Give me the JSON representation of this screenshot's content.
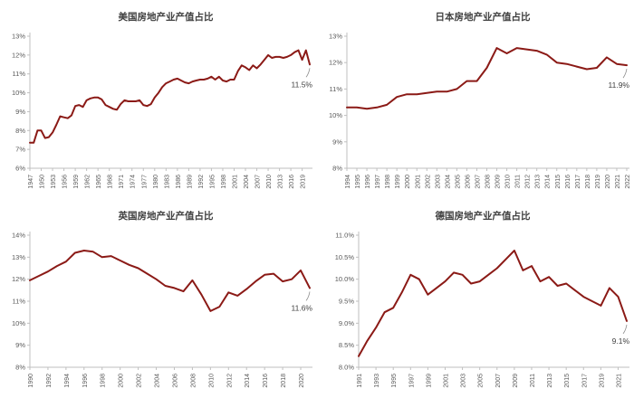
{
  "style": {
    "accent_color": "#8B1A16",
    "axis_color": "#BFBFBF",
    "tick_label_color": "#595959",
    "title_color": "#404040",
    "annotation_color": "#404040",
    "leader_line_color": "#8C8C8C",
    "background": "#FFFFFF"
  },
  "chart_data": [
    {
      "type": "line",
      "title": "美国房地产业产值占比",
      "annotation": "11.5%",
      "x_start": 1947,
      "x_step": 1,
      "values": [
        7.35,
        7.35,
        8.0,
        8.0,
        7.6,
        7.65,
        7.9,
        8.3,
        8.75,
        8.7,
        8.65,
        8.8,
        9.3,
        9.35,
        9.25,
        9.6,
        9.7,
        9.75,
        9.75,
        9.65,
        9.35,
        9.25,
        9.15,
        9.1,
        9.4,
        9.6,
        9.55,
        9.55,
        9.55,
        9.6,
        9.35,
        9.3,
        9.4,
        9.75,
        10.0,
        10.3,
        10.5,
        10.6,
        10.7,
        10.75,
        10.65,
        10.55,
        10.5,
        10.6,
        10.65,
        10.7,
        10.7,
        10.75,
        10.85,
        10.7,
        10.85,
        10.65,
        10.6,
        10.7,
        10.7,
        11.15,
        11.45,
        11.35,
        11.2,
        11.45,
        11.3,
        11.5,
        11.75,
        12.0,
        11.85,
        11.9,
        11.9,
        11.85,
        11.9,
        12.0,
        12.15,
        12.25,
        11.75,
        12.25,
        11.5
      ],
      "x_ticks": [
        "1947",
        "1950",
        "1953",
        "1956",
        "1959",
        "1962",
        "1965",
        "1968",
        "1971",
        "1974",
        "1977",
        "1980",
        "1983",
        "1986",
        "1989",
        "1992",
        "1995",
        "1998",
        "2001",
        "2004",
        "2007",
        "2010",
        "2013",
        "2016",
        "2019"
      ],
      "ylim": [
        6,
        13
      ],
      "y_tick_values": [
        13,
        12,
        11,
        10,
        9,
        8,
        7,
        6
      ],
      "y_tick_labels": [
        "13%",
        "12%",
        "11%",
        "10%",
        "9%",
        "8%",
        "7%",
        "6%"
      ],
      "grid": "off",
      "legend": "none"
    },
    {
      "type": "line",
      "title": "日本房地产业产值占比",
      "annotation": "11.9%",
      "x_start": 1994,
      "x_step": 1,
      "values": [
        10.3,
        10.3,
        10.25,
        10.3,
        10.4,
        10.7,
        10.8,
        10.8,
        10.85,
        10.9,
        10.9,
        11.0,
        11.3,
        11.3,
        11.8,
        12.55,
        12.35,
        12.55,
        12.5,
        12.45,
        12.3,
        12.0,
        11.95,
        11.85,
        11.75,
        11.8,
        12.2,
        11.95,
        11.9
      ],
      "x_ticks": [
        "1994",
        "1995",
        "1996",
        "1997",
        "1998",
        "1999",
        "2000",
        "2001",
        "2002",
        "2003",
        "2004",
        "2005",
        "2006",
        "2007",
        "2008",
        "2009",
        "2010",
        "2011",
        "2012",
        "2013",
        "2014",
        "2015",
        "2016",
        "2017",
        "2018",
        "2019",
        "2020",
        "2021",
        "2022"
      ],
      "ylim": [
        8,
        13
      ],
      "y_tick_values": [
        13,
        12,
        11,
        10,
        9,
        8
      ],
      "y_tick_labels": [
        "13%",
        "12%",
        "11%",
        "10%",
        "9%",
        "8%"
      ],
      "grid": "off",
      "legend": "none"
    },
    {
      "type": "line",
      "title": "英国房地产业产值占比",
      "annotation": "11.6%",
      "x_start": 1990,
      "x_step": 1,
      "values": [
        11.95,
        12.15,
        12.35,
        12.6,
        12.8,
        13.2,
        13.3,
        13.25,
        13.0,
        13.05,
        12.85,
        12.65,
        12.5,
        12.25,
        12.0,
        11.7,
        11.6,
        11.45,
        11.95,
        11.3,
        10.55,
        10.75,
        11.4,
        11.25,
        11.55,
        11.9,
        12.2,
        12.25,
        11.9,
        12.0,
        12.4,
        11.6
      ],
      "x_ticks": [
        "1990",
        "1992",
        "1994",
        "1996",
        "1998",
        "2000",
        "2002",
        "2004",
        "2006",
        "2008",
        "2010",
        "2012",
        "2014",
        "2016",
        "2018",
        "2020"
      ],
      "ylim": [
        8,
        14
      ],
      "y_tick_values": [
        14,
        13,
        12,
        11,
        10,
        9,
        8
      ],
      "y_tick_labels": [
        "14%",
        "13%",
        "12%",
        "11%",
        "10%",
        "9%",
        "8%"
      ],
      "grid": "off",
      "legend": "none"
    },
    {
      "type": "line",
      "title": "德国房地产业产值占比",
      "annotation": "9.1%",
      "x_start": 1991,
      "x_step": 1,
      "values": [
        8.25,
        8.6,
        8.9,
        9.25,
        9.35,
        9.7,
        10.1,
        10.0,
        9.65,
        9.8,
        9.95,
        10.15,
        10.1,
        9.9,
        9.95,
        10.1,
        10.25,
        10.45,
        10.65,
        10.2,
        10.3,
        9.95,
        10.05,
        9.85,
        9.9,
        9.75,
        9.6,
        9.5,
        9.4,
        9.8,
        9.6,
        9.05
      ],
      "x_ticks": [
        "1991",
        "1993",
        "1995",
        "1997",
        "1999",
        "2001",
        "2003",
        "2005",
        "2007",
        "2009",
        "2011",
        "2013",
        "2015",
        "2017",
        "2019",
        "2021"
      ],
      "ylim": [
        8,
        11
      ],
      "y_tick_values": [
        11,
        10.5,
        10,
        9.5,
        9,
        8.5,
        8
      ],
      "y_tick_labels": [
        "11.0%",
        "10.5%",
        "10.0%",
        "9.5%",
        "9.0%",
        "8.5%",
        "8.0%"
      ],
      "grid": "off",
      "legend": "none"
    }
  ]
}
